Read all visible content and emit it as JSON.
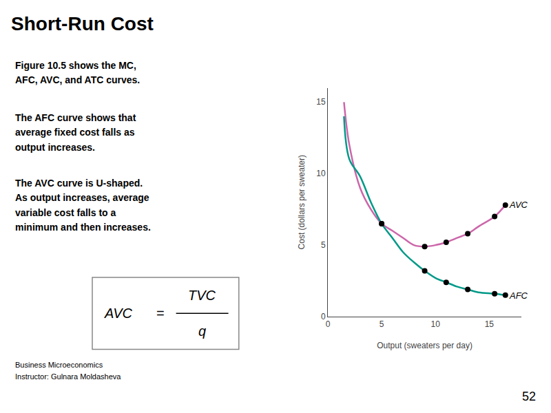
{
  "chart_data": {
    "type": "line",
    "title": "Short-Run Cost",
    "xlabel": "Output (sweaters per day)",
    "ylabel": "Cost (dollars per sweater)",
    "series": [
      {
        "type": "line",
        "color": "#cc66aa",
        "x": [
          1.5,
          2.0,
          3.0,
          4.0,
          5.0,
          6.0,
          7.0,
          8.0,
          9.0,
          10.0,
          11.0,
          12.0,
          13.0,
          14.0,
          15.5,
          16.5
        ],
        "values": [
          15.0,
          12.0,
          9.0,
          7.5,
          6.5,
          6.0,
          5.5,
          5.0,
          4.9,
          5.0,
          5.2,
          5.5,
          5.8,
          6.3,
          7.0,
          7.8
        ]
      },
      {
        "type": "line",
        "color": "#009988",
        "x": [
          1.5,
          2.0,
          3.0,
          4.0,
          5.0,
          6.0,
          7.0,
          8.0,
          9.0,
          10.0,
          11.0,
          12.0,
          13.0,
          14.0,
          15.5,
          16.5
        ],
        "values": [
          14.0,
          11.0,
          9.8,
          8.0,
          6.5,
          5.5,
          4.5,
          3.8,
          3.2,
          2.7,
          2.4,
          2.1,
          1.9,
          1.7,
          1.6,
          1.5
        ]
      },
      {
        "type": "scatter",
        "color": "#000000",
        "x": [
          5.0,
          9.0,
          11.0,
          13.0,
          15.5,
          16.5
        ],
        "values": [
          6.5,
          4.9,
          5.2,
          5.8,
          7.0,
          7.8
        ]
      },
      {
        "type": "scatter",
        "color": "#000000",
        "x": [
          5.0,
          9.0,
          11.0,
          13.0,
          15.5,
          16.5
        ],
        "values": [
          6.5,
          3.2,
          2.4,
          1.9,
          1.6,
          1.5
        ]
      }
    ],
    "xlim": [
      0,
      18
    ],
    "ylim": [
      0,
      16
    ],
    "xticks": [
      0,
      5,
      10,
      15
    ],
    "yticks": [
      0,
      5,
      10,
      15
    ],
    "grid": false,
    "annotations": [
      {
        "text": "AVC",
        "x": 16.7,
        "y": 7.8
      },
      {
        "text": "AFC",
        "x": 16.7,
        "y": 1.45
      },
      {
        "text": "Figure 10.5 shows the MC,"
      },
      {
        "text": "AFC, AVC, and ATC curves."
      },
      {
        "text": "The AFC curve shows that"
      },
      {
        "text": "average fixed cost falls as"
      },
      {
        "text": "output increases."
      },
      {
        "text": "The AVC curve is U-shaped."
      },
      {
        "text": "As output increases, average"
      },
      {
        "text": "variable cost falls to a"
      },
      {
        "text": "minimum and then increases."
      },
      {
        "text": "AVC"
      },
      {
        "text": "="
      },
      {
        "text": "TVC"
      },
      {
        "text": "q"
      },
      {
        "text": "Business Microeconomics"
      },
      {
        "text": "Instructor: Gulnara Moldasheva"
      },
      {
        "text": "52"
      }
    ]
  }
}
